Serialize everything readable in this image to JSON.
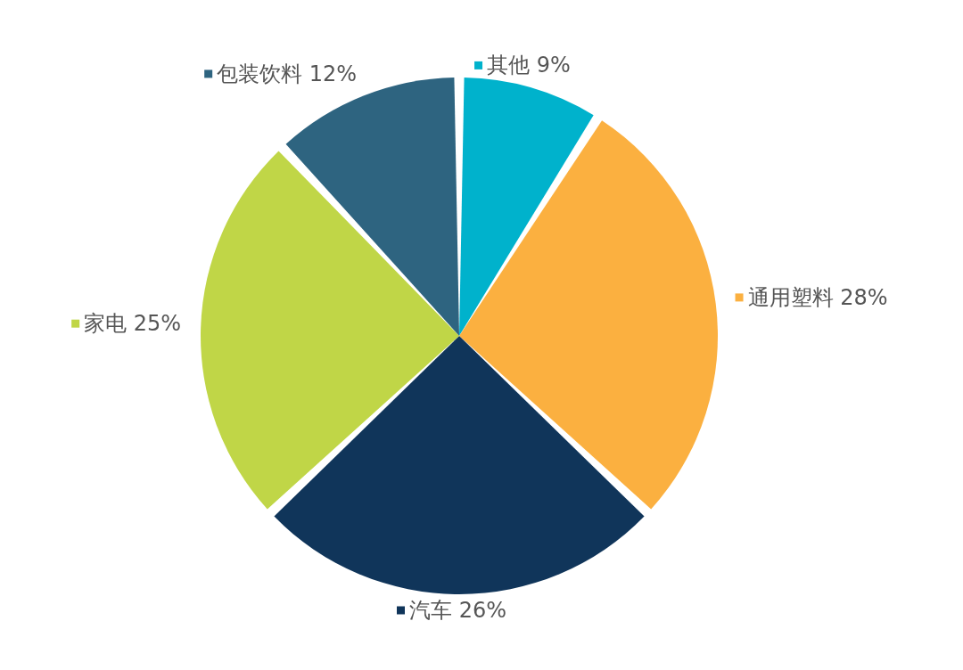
{
  "chart_data": {
    "type": "pie",
    "categories": [
      "其他",
      "通用塑料",
      "汽车",
      "家电",
      "包装饮料"
    ],
    "values": [
      9,
      28,
      26,
      25,
      12
    ],
    "value_labels": [
      "9%",
      "28%",
      "26%",
      "25%",
      "12%"
    ],
    "colors": [
      "#00b2cc",
      "#fbb040",
      "#10355a",
      "#c0d647",
      "#2e6480"
    ],
    "legend": "bottom right"
  }
}
